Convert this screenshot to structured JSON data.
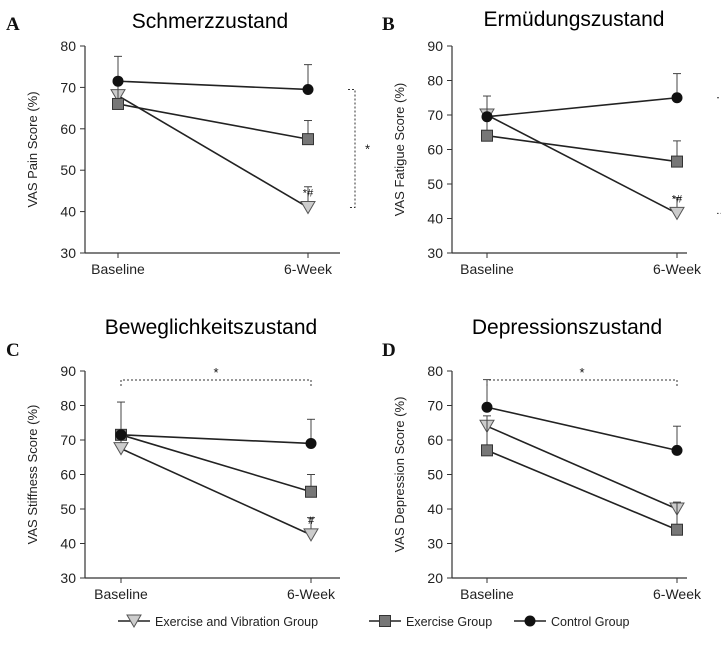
{
  "legend": [
    {
      "name": "Exercise and Vibration Group",
      "marker": "triangle",
      "color": "#cccccc"
    },
    {
      "name": "Exercise Group",
      "marker": "square",
      "color": "#777777"
    },
    {
      "name": "Control Group",
      "marker": "circle",
      "color": "#111111"
    }
  ],
  "chart_data": [
    {
      "letter": "A",
      "title": "Schmerzzustand",
      "type": "line",
      "categories": [
        "Baseline",
        "6-Week"
      ],
      "ylabel": "VAS Pain Score (%)",
      "ylim": [
        30,
        80
      ],
      "yticks": [
        30,
        40,
        50,
        60,
        70,
        80
      ],
      "series": [
        {
          "name": "Exercise and Vibration Group",
          "marker": "triangle",
          "values": [
            68,
            41
          ],
          "error": [
            null,
            5
          ],
          "annotation": "*#"
        },
        {
          "name": "Exercise Group",
          "marker": "square",
          "values": [
            66,
            57.5
          ],
          "error": [
            6,
            4.5
          ]
        },
        {
          "name": "Control Group",
          "marker": "circle",
          "values": [
            71.5,
            69.5
          ],
          "error": [
            6,
            6
          ]
        }
      ],
      "significance": {
        "type": "bracket",
        "label": "*",
        "from": 69.5,
        "to": 41
      }
    },
    {
      "letter": "B",
      "title": "Ermüdungszustand",
      "type": "line",
      "categories": [
        "Baseline",
        "6-Week"
      ],
      "ylabel": "VAS Fatigue Score (%)",
      "ylim": [
        30,
        90
      ],
      "yticks": [
        30,
        40,
        50,
        60,
        70,
        80,
        90
      ],
      "series": [
        {
          "name": "Exercise and Vibration Group",
          "marker": "triangle",
          "values": [
            70,
            41.5
          ],
          "error": [
            null,
            4.5
          ],
          "annotation": "*#"
        },
        {
          "name": "Exercise Group",
          "marker": "square",
          "values": [
            64,
            56.5
          ],
          "error": [
            5,
            6
          ]
        },
        {
          "name": "Control Group",
          "marker": "circle",
          "values": [
            69.5,
            75
          ],
          "error": [
            6,
            7
          ]
        }
      ],
      "significance": {
        "type": "bracket",
        "label": "*",
        "from": 75,
        "to": 41.5
      }
    },
    {
      "letter": "C",
      "title": "Beweglichkeitszustand",
      "type": "line",
      "categories": [
        "Baseline",
        "6-Week"
      ],
      "ylabel": "VAS Stiffness Score (%)",
      "ylim": [
        30,
        90
      ],
      "yticks": [
        30,
        40,
        50,
        60,
        70,
        80,
        90
      ],
      "series": [
        {
          "name": "Exercise and Vibration Group",
          "marker": "triangle",
          "values": [
            67.5,
            42.5
          ],
          "error": [
            3.5,
            5
          ],
          "annotation": "#"
        },
        {
          "name": "Exercise Group",
          "marker": "square",
          "values": [
            71.5,
            55
          ],
          "error": [
            null,
            5
          ]
        },
        {
          "name": "Control Group",
          "marker": "circle",
          "values": [
            71.5,
            69
          ],
          "error": [
            9.5,
            7
          ]
        }
      ],
      "significance": {
        "type": "top",
        "label": "*"
      }
    },
    {
      "letter": "D",
      "title": "Depressionszustand",
      "type": "line",
      "categories": [
        "Baseline",
        "6-Week"
      ],
      "ylabel": "VAS Depression Score (%)",
      "ylim": [
        20,
        80
      ],
      "yticks": [
        20,
        30,
        40,
        50,
        60,
        70,
        80
      ],
      "series": [
        {
          "name": "Exercise and Vibration Group",
          "marker": "triangle",
          "values": [
            64,
            40
          ],
          "error": [
            null,
            null
          ]
        },
        {
          "name": "Exercise Group",
          "marker": "square",
          "values": [
            57,
            34
          ],
          "error": [
            10,
            8
          ]
        },
        {
          "name": "Control Group",
          "marker": "circle",
          "values": [
            69.5,
            57
          ],
          "error": [
            8,
            7
          ]
        }
      ],
      "significance": {
        "type": "top",
        "label": "*"
      }
    }
  ]
}
